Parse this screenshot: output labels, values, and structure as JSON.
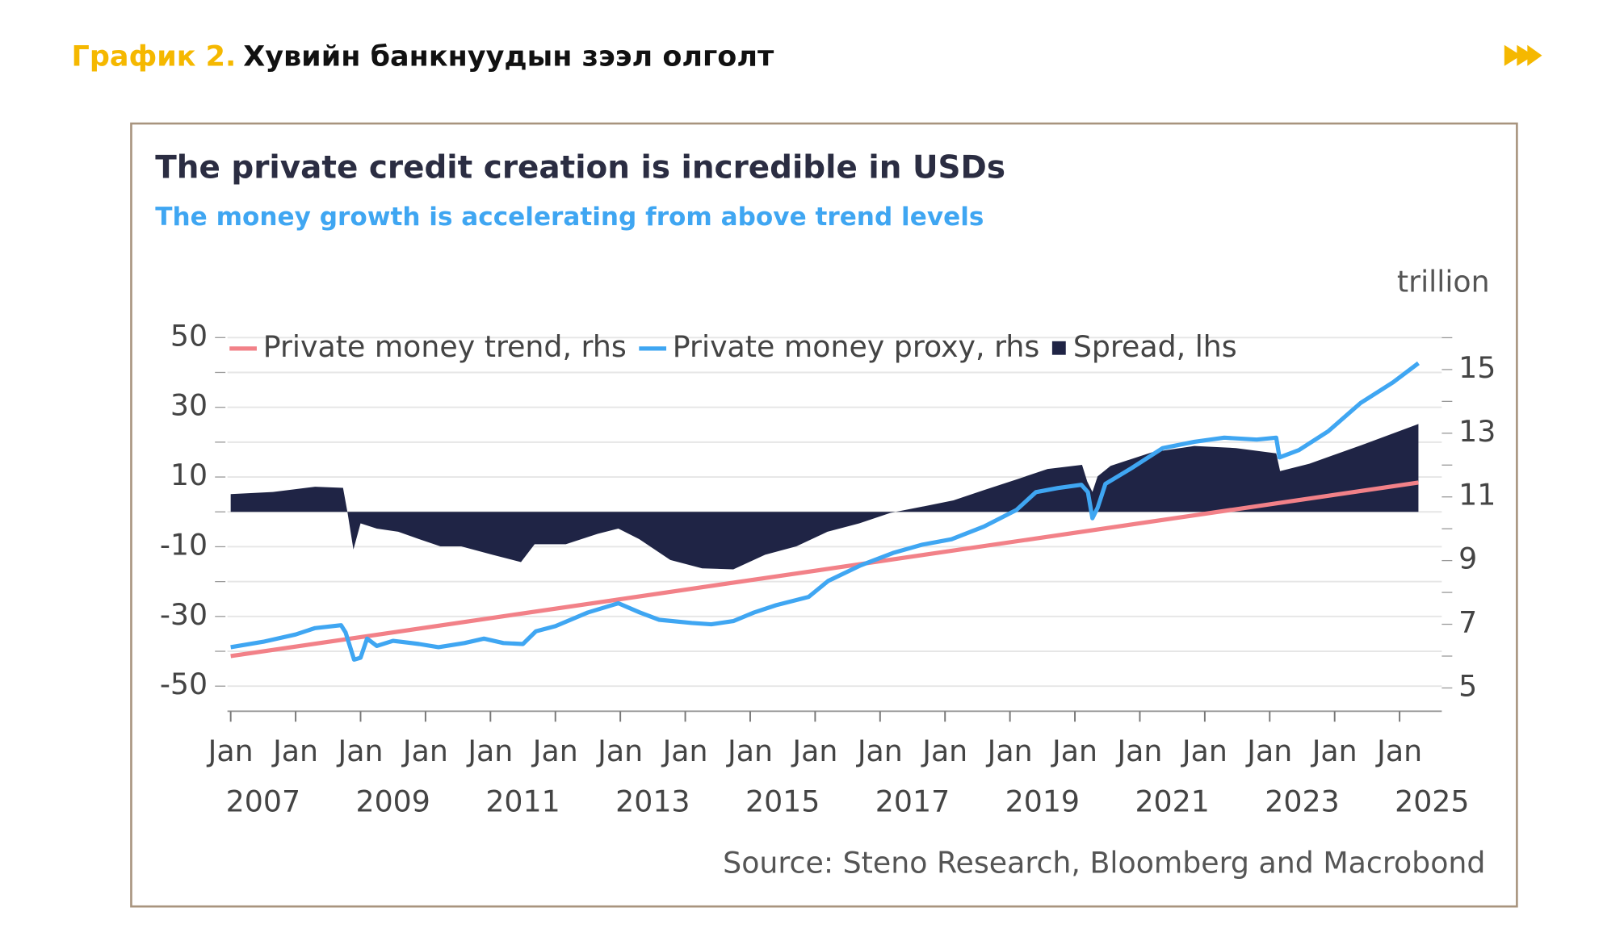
{
  "header": {
    "label": "График 2.",
    "title": "Хувийн банкнуудын зээл олголт"
  },
  "chart_data": {
    "type": "line",
    "title": "The private credit creation is incredible in USDs",
    "subtitle": "The money growth is accelerating from above trend levels",
    "y2_unit": "trillion",
    "source": "Source: Steno Research, Bloomberg and Macrobond",
    "legend": "upper left",
    "grid": true,
    "xlim": [
      2006.95,
      2025.65
    ],
    "xticks": [
      {
        "value": 2007,
        "label": "Jan"
      },
      {
        "value": 2008,
        "label": "Jan"
      },
      {
        "value": 2009,
        "label": "Jan"
      },
      {
        "value": 2010,
        "label": "Jan"
      },
      {
        "value": 2011,
        "label": "Jan"
      },
      {
        "value": 2012,
        "label": "Jan"
      },
      {
        "value": 2013,
        "label": "Jan"
      },
      {
        "value": 2014,
        "label": "Jan"
      },
      {
        "value": 2015,
        "label": "Jan"
      },
      {
        "value": 2016,
        "label": "Jan"
      },
      {
        "value": 2017,
        "label": "Jan"
      },
      {
        "value": 2018,
        "label": "Jan"
      },
      {
        "value": 2019,
        "label": "Jan"
      },
      {
        "value": 2020,
        "label": "Jan"
      },
      {
        "value": 2021,
        "label": "Jan"
      },
      {
        "value": 2022,
        "label": "Jan"
      },
      {
        "value": 2023,
        "label": "Jan"
      },
      {
        "value": 2024,
        "label": "Jan"
      },
      {
        "value": 2025,
        "label": "Jan"
      }
    ],
    "xyears": [
      2007,
      2009,
      2011,
      2013,
      2015,
      2017,
      2019,
      2021,
      2023,
      2025
    ],
    "ylim": [
      -56,
      57
    ],
    "yticks": [
      -50,
      -30,
      -10,
      10,
      30,
      50
    ],
    "yminorticks": [
      -40,
      -20,
      0,
      20,
      40
    ],
    "y2lim": [
      4.4,
      16.77
    ],
    "y2ticks": [
      5,
      7,
      9,
      11,
      13,
      15
    ],
    "y2minorticks": [
      6,
      8,
      10,
      12,
      14,
      16
    ],
    "series": [
      {
        "name": "Private money trend, rhs",
        "color": "#f28188",
        "axis": "y2",
        "kind": "line",
        "x": [
          2007,
          2025.29
        ],
        "values": [
          6.0,
          11.45
        ]
      },
      {
        "name": "Private money proxy, rhs",
        "color": "#3fa6f2",
        "axis": "y2",
        "kind": "line",
        "x": [
          2007,
          2007.5,
          2008,
          2008.3,
          2008.7,
          2008.77,
          2008.9,
          2009.0,
          2009.1,
          2009.25,
          2009.5,
          2009.9,
          2010.2,
          2010.6,
          2010.9,
          2011.2,
          2011.5,
          2011.7,
          2012.0,
          2012.5,
          2012.97,
          2013.3,
          2013.6,
          2014.1,
          2014.4,
          2014.74,
          2015.06,
          2015.4,
          2015.9,
          2016.2,
          2016.7,
          2017.2,
          2017.65,
          2018.1,
          2018.6,
          2019.1,
          2019.4,
          2019.74,
          2020.1,
          2020.2,
          2020.27,
          2020.35,
          2020.47,
          2020.87,
          2021.35,
          2021.84,
          2022.3,
          2022.8,
          2023.1,
          2023.15,
          2023.45,
          2023.9,
          2024.4,
          2024.9,
          2025.29
        ],
        "values": [
          6.28,
          6.45,
          6.68,
          6.88,
          6.97,
          6.74,
          5.89,
          5.95,
          6.55,
          6.32,
          6.48,
          6.38,
          6.28,
          6.41,
          6.55,
          6.41,
          6.38,
          6.78,
          6.94,
          7.37,
          7.66,
          7.37,
          7.14,
          7.04,
          7.0,
          7.1,
          7.37,
          7.6,
          7.86,
          8.36,
          8.85,
          9.24,
          9.5,
          9.67,
          10.07,
          10.59,
          11.15,
          11.28,
          11.38,
          11.15,
          10.33,
          10.66,
          11.41,
          11.9,
          12.53,
          12.73,
          12.86,
          12.8,
          12.86,
          12.24,
          12.47,
          13.06,
          13.95,
          14.6,
          15.2
        ]
      },
      {
        "name": "Spread, lhs",
        "color": "#1f2445",
        "axis": "y",
        "kind": "area",
        "x": [
          2007,
          2007.65,
          2008.3,
          2008.73,
          2008.8,
          2008.89,
          2009.0,
          2009.25,
          2009.58,
          2009.9,
          2010.23,
          2010.55,
          2011.03,
          2011.47,
          2011.68,
          2012.16,
          2012.65,
          2012.97,
          2013.29,
          2013.77,
          2014.26,
          2014.74,
          2015.23,
          2015.71,
          2016.19,
          2016.68,
          2017.16,
          2017.65,
          2018.13,
          2018.61,
          2019.1,
          2019.58,
          2020.11,
          2020.19,
          2020.27,
          2020.35,
          2020.55,
          2021.19,
          2021.84,
          2022.48,
          2023.1,
          2023.16,
          2023.61,
          2024.42,
          2025.29
        ],
        "values": [
          5.1,
          5.7,
          7.2,
          6.9,
          -0.3,
          -10.8,
          -3.3,
          -4.8,
          -5.7,
          -7.8,
          -9.9,
          -9.9,
          -12.3,
          -14.4,
          -9.3,
          -9.3,
          -6.3,
          -4.8,
          -7.8,
          -13.8,
          -16.2,
          -16.5,
          -12.3,
          -9.9,
          -5.7,
          -3.3,
          -0.3,
          1.5,
          3.3,
          6.3,
          9.3,
          12.3,
          13.5,
          8.7,
          5.7,
          10.2,
          13.2,
          17.1,
          18.9,
          18.3,
          16.8,
          11.7,
          13.8,
          19.2,
          25.2
        ]
      }
    ]
  }
}
